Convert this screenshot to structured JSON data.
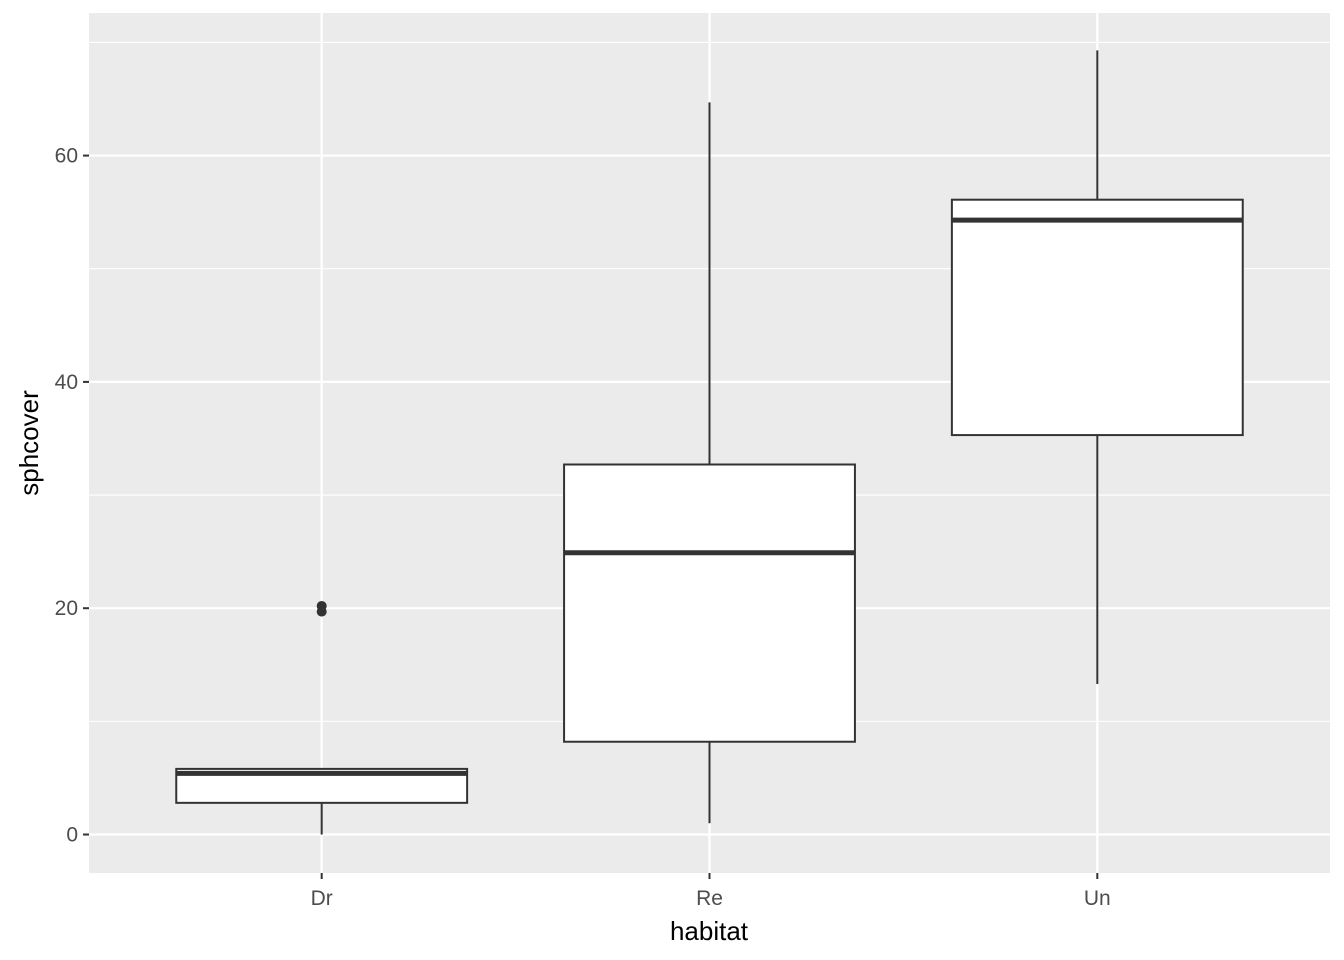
{
  "chart_data": {
    "type": "boxplot",
    "xlabel": "habitat",
    "ylabel": "sphcover",
    "categories": [
      "Dr",
      "Re",
      "Un"
    ],
    "yticks": [
      0,
      20,
      40,
      60
    ],
    "ylim": [
      -3.4,
      72.6
    ],
    "grid": true,
    "boxes": [
      {
        "category": "Dr",
        "whisker_low": 0.0,
        "q1": 2.8,
        "median": 5.4,
        "q3": 5.8,
        "whisker_high": 5.8,
        "outliers": [
          19.7,
          20.2
        ]
      },
      {
        "category": "Re",
        "whisker_low": 1.0,
        "q1": 8.2,
        "median": 24.9,
        "q3": 32.7,
        "whisker_high": 64.7,
        "outliers": []
      },
      {
        "category": "Un",
        "whisker_low": 13.3,
        "q1": 35.3,
        "median": 54.3,
        "q3": 56.1,
        "whisker_high": 69.3,
        "outliers": []
      }
    ],
    "colors": {
      "panel_background": "#EBEBEB",
      "grid_line": "#FFFFFF",
      "box_fill": "#FFFFFF",
      "box_line": "#333333",
      "tick_label": "#4D4D4D",
      "tick_mark": "#333333",
      "axis_title": "#000000"
    }
  }
}
